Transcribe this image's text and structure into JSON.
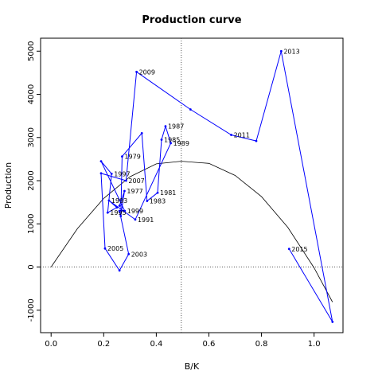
{
  "chart_data": {
    "type": "line",
    "title": "Production curve",
    "xlabel": "B/K",
    "ylabel": "Production",
    "xlim": [
      -0.04,
      1.11
    ],
    "ylim": [
      -1520,
      5300
    ],
    "x_ticks": [
      0.0,
      0.2,
      0.4,
      0.6,
      0.8,
      1.0
    ],
    "x_tick_labels": [
      "0.0",
      "0.2",
      "0.4",
      "0.6",
      "0.8",
      "1.0"
    ],
    "y_ticks": [
      -1000,
      0,
      1000,
      2000,
      3000,
      4000,
      5000
    ],
    "y_tick_labels": [
      "-1000",
      "0",
      "1000",
      "2000",
      "3000",
      "4000",
      "5000"
    ],
    "grid": false,
    "reference_lines": [
      {
        "orientation": "vertical",
        "x": 0.495,
        "style": "dotted"
      },
      {
        "orientation": "horizontal",
        "y": 0,
        "style": "dotted"
      }
    ],
    "series": [
      {
        "color": "#0000ff",
        "points": [
          {
            "x": 0.26,
            "y": 1420,
            "label": ""
          },
          {
            "x": 0.279,
            "y": 1760,
            "label": "1977"
          },
          {
            "x": 0.265,
            "y": 1180,
            "label": ""
          },
          {
            "x": 0.27,
            "y": 2560,
            "label": "1979"
          },
          {
            "x": 0.345,
            "y": 3100,
            "label": ""
          },
          {
            "x": 0.365,
            "y": 1530,
            "label": "1983"
          },
          {
            "x": 0.405,
            "y": 1720,
            "label": "1981"
          },
          {
            "x": 0.42,
            "y": 2950,
            "label": "1985"
          },
          {
            "x": 0.435,
            "y": 3260,
            "label": "1987"
          },
          {
            "x": 0.455,
            "y": 2870,
            "label": "1989"
          },
          {
            "x": 0.32,
            "y": 1100,
            "label": "1991"
          },
          {
            "x": 0.22,
            "y": 1540,
            "label": "1993"
          },
          {
            "x": 0.25,
            "y": 1380,
            "label": ""
          },
          {
            "x": 0.215,
            "y": 1260,
            "label": "1995"
          },
          {
            "x": 0.23,
            "y": 2160,
            "label": "1997"
          },
          {
            "x": 0.19,
            "y": 2450,
            "label": ""
          },
          {
            "x": 0.28,
            "y": 1300,
            "label": "1999"
          },
          {
            "x": 0.26,
            "y": 1300,
            "label": ""
          },
          {
            "x": 0.295,
            "y": 300,
            "label": "2003"
          },
          {
            "x": 0.26,
            "y": -80,
            "label": ""
          },
          {
            "x": 0.205,
            "y": 430,
            "label": "2005"
          },
          {
            "x": 0.19,
            "y": 2170,
            "label": ""
          },
          {
            "x": 0.285,
            "y": 2000,
            "label": "2007"
          },
          {
            "x": 0.325,
            "y": 4520,
            "label": "2009"
          },
          {
            "x": 0.53,
            "y": 3650,
            "label": ""
          },
          {
            "x": 0.685,
            "y": 3060,
            "label": "2011"
          },
          {
            "x": 0.78,
            "y": 2920,
            "label": ""
          },
          {
            "x": 0.875,
            "y": 5000,
            "label": "2013"
          },
          {
            "x": 1.07,
            "y": -1270,
            "label": ""
          },
          {
            "x": 0.905,
            "y": 420,
            "label": "2015"
          }
        ]
      },
      {
        "color": "#000000",
        "curve": "parabola",
        "points": [
          {
            "x": 0.0,
            "y": 0
          },
          {
            "x": 0.1,
            "y": 890
          },
          {
            "x": 0.2,
            "y": 1590
          },
          {
            "x": 0.3,
            "y": 2090
          },
          {
            "x": 0.4,
            "y": 2390
          },
          {
            "x": 0.495,
            "y": 2450
          },
          {
            "x": 0.6,
            "y": 2400
          },
          {
            "x": 0.7,
            "y": 2120
          },
          {
            "x": 0.8,
            "y": 1630
          },
          {
            "x": 0.9,
            "y": 920
          },
          {
            "x": 1.0,
            "y": -20
          },
          {
            "x": 1.07,
            "y": -810
          }
        ]
      }
    ]
  }
}
